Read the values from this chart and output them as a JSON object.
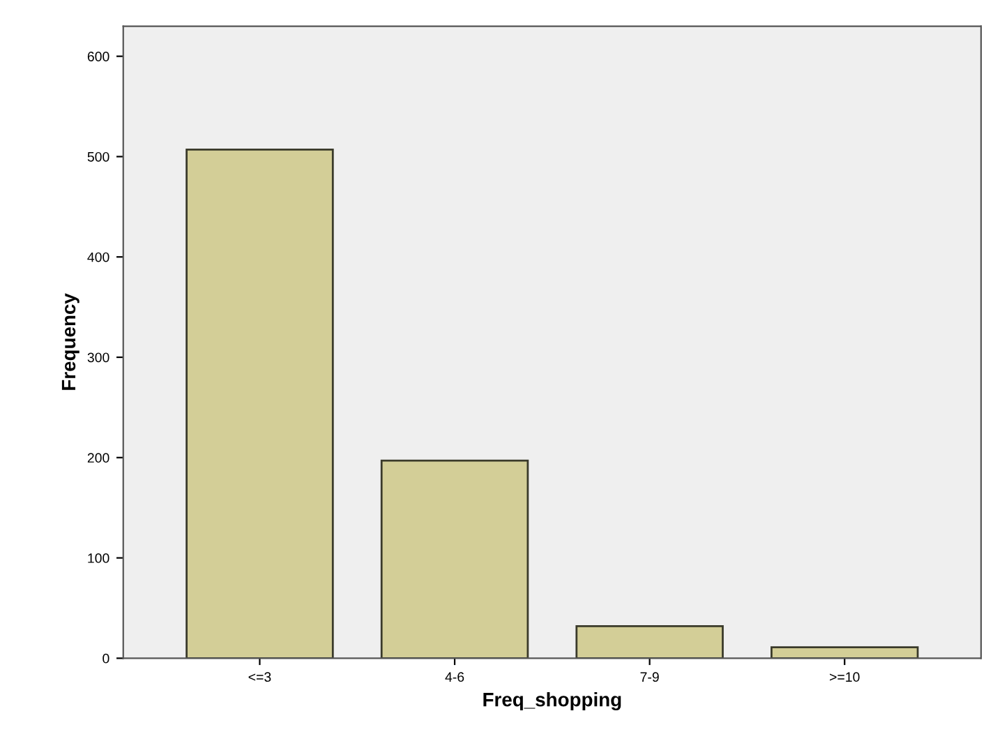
{
  "chart_data": {
    "type": "bar",
    "xlabel": "Freq_shopping",
    "ylabel": "Frequency",
    "categories": [
      "<=3",
      "4-6",
      "7-9",
      ">=10"
    ],
    "values": [
      507,
      197,
      32,
      11
    ],
    "color": "#d3ce97",
    "ylim": [
      0,
      630
    ],
    "yticks": [
      0,
      100,
      200,
      300,
      400,
      500,
      600
    ],
    "grid": false,
    "legend": false
  }
}
